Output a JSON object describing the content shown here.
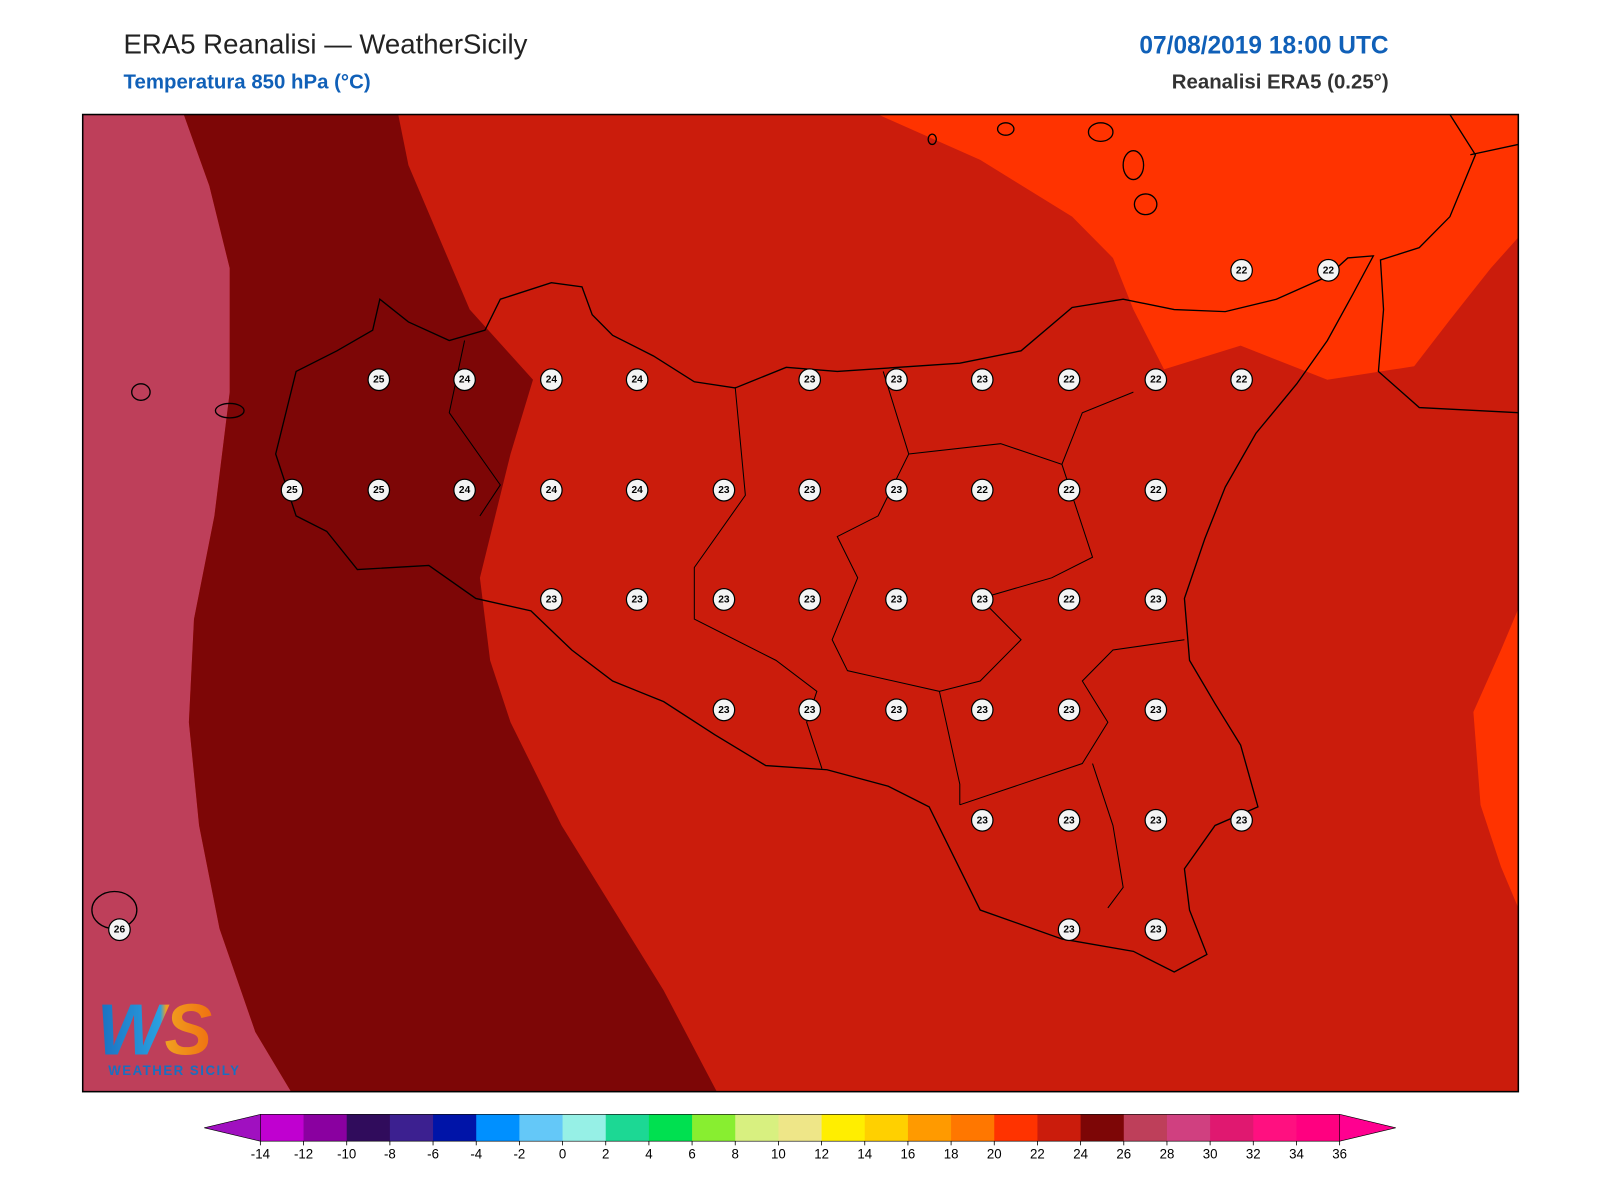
{
  "header": {
    "title": "ERA5 Reanalisi — WeatherSicily",
    "subtitle": "Temperatura 850 hPa (°C)",
    "date": "07/08/2019 18:00 UTC",
    "source": "Reanalisi ERA5 (0.25°)"
  },
  "map": {
    "stations": [
      25,
      24,
      24,
      24,
      23,
      23,
      23,
      22,
      22,
      22,
      22,
      22,
      25,
      25,
      24,
      24,
      24,
      23,
      23,
      23,
      22,
      22,
      22,
      23,
      23,
      23,
      23,
      23,
      23,
      22,
      23,
      23,
      23,
      23,
      23,
      23,
      23,
      23,
      23,
      23,
      23,
      26,
      23,
      23
    ]
  },
  "colorbar": {
    "ticks": [
      -14,
      -12,
      -10,
      -8,
      -6,
      -4,
      -2,
      0,
      2,
      4,
      6,
      8,
      10,
      12,
      14,
      16,
      18,
      20,
      22,
      24,
      26,
      28,
      30,
      32,
      34,
      36
    ],
    "colors": [
      "#c000d0",
      "#8a00a0",
      "#300c5c",
      "#3c2090",
      "#0014a8",
      "#0090ff",
      "#64c8f8",
      "#96f0e6",
      "#1cd894",
      "#00e050",
      "#88ee30",
      "#d8f080",
      "#eee688",
      "#ffee00",
      "#ffd000",
      "#ff9a00",
      "#ff7700",
      "#ff3300",
      "#cb1c0c",
      "#7d0606",
      "#be3f5a",
      "#d04080",
      "#e01870",
      "#ff1080",
      "#ff0080"
    ],
    "under": "#a010c0",
    "over": "#ff0090"
  },
  "logo": {
    "mark": "WS",
    "text": "WEATHER SICILY"
  }
}
